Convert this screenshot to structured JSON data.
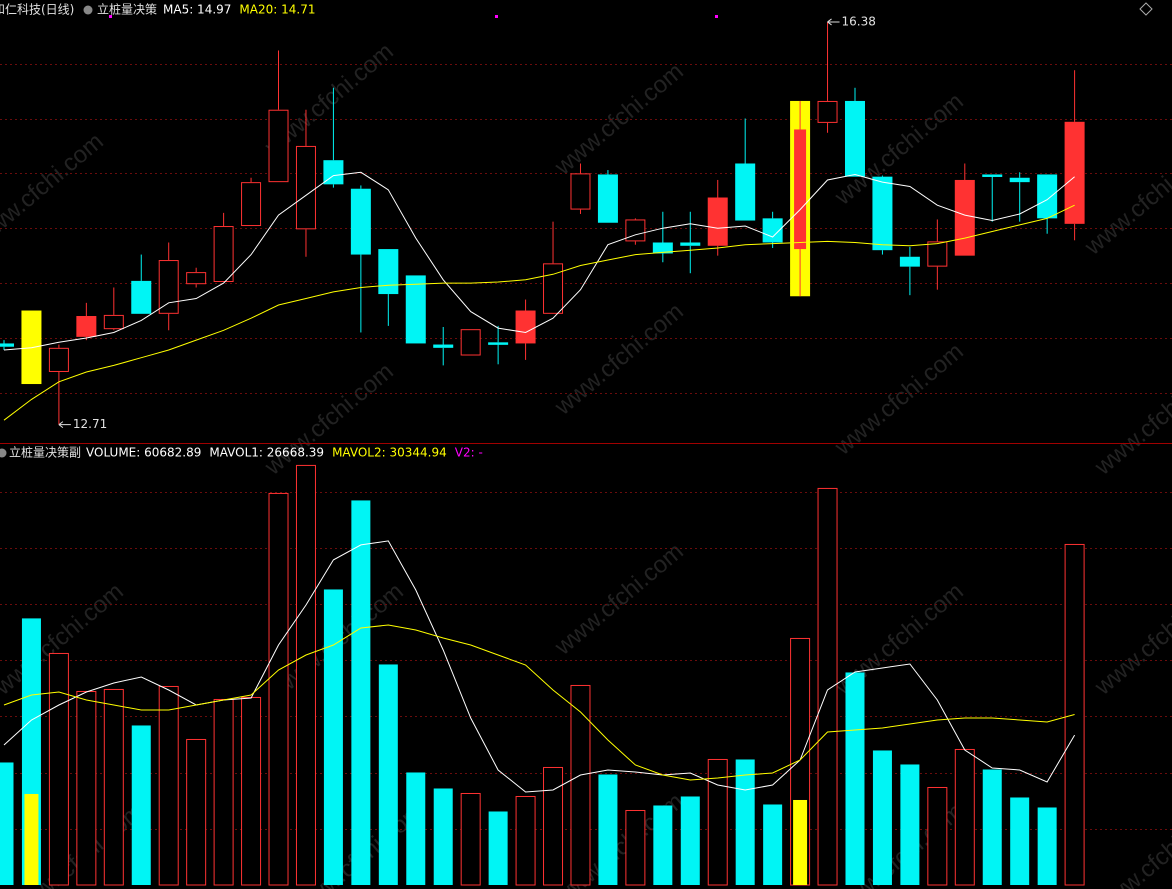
{
  "header": {
    "title": "和仁科技(日线)",
    "indicator": "立桩量决策"
  },
  "watermark": "www.cfchi.com",
  "chart_data": [
    {
      "type": "candlestick",
      "ylim": [
        12.57,
        16.58
      ],
      "yticks": [
        13,
        13.5,
        14,
        14.5,
        15,
        15.5,
        16
      ],
      "grid": true,
      "tick_labels": false,
      "up_color": "#ff3232",
      "down_color": "#00f5f5",
      "candles": [
        {
          "open": 13.45,
          "high": 13.48,
          "low": 13.39,
          "close": 13.42
        },
        {
          "open": 13.75,
          "high": 13.75,
          "low": 13.08,
          "close": 13.08,
          "color": "#ffff00"
        },
        {
          "open": 13.19,
          "high": 13.44,
          "low": 12.71,
          "close": 13.41
        },
        {
          "open": 13.51,
          "high": 13.82,
          "low": 13.48,
          "close": 13.7,
          "hollow": false
        },
        {
          "open": 13.58,
          "high": 13.96,
          "low": 13.57,
          "close": 13.71
        },
        {
          "open": 14.02,
          "high": 14.26,
          "low": 13.72,
          "close": 13.72
        },
        {
          "open": 13.72,
          "high": 14.37,
          "low": 13.57,
          "close": 14.21
        },
        {
          "open": 13.99,
          "high": 14.14,
          "low": 13.96,
          "close": 14.1
        },
        {
          "open": 14.01,
          "high": 14.64,
          "low": 14.01,
          "close": 14.52
        },
        {
          "open": 14.52,
          "high": 14.96,
          "low": 14.52,
          "close": 14.92
        },
        {
          "open": 14.92,
          "high": 16.12,
          "low": 14.92,
          "close": 15.58
        },
        {
          "open": 14.49,
          "high": 15.58,
          "low": 14.24,
          "close": 15.25
        },
        {
          "open": 15.12,
          "high": 15.78,
          "low": 14.87,
          "close": 14.9
        },
        {
          "open": 14.86,
          "high": 14.89,
          "low": 13.55,
          "close": 14.26
        },
        {
          "open": 14.31,
          "high": 14.31,
          "low": 13.61,
          "close": 13.9
        },
        {
          "open": 14.07,
          "high": 14.07,
          "low": 13.45,
          "close": 13.45
        },
        {
          "open": 13.44,
          "high": 13.6,
          "low": 13.25,
          "close": 13.41
        },
        {
          "open": 13.34,
          "high": 13.58,
          "low": 13.34,
          "close": 13.58
        },
        {
          "open": 13.46,
          "high": 13.61,
          "low": 13.26,
          "close": 13.45
        },
        {
          "open": 13.45,
          "high": 13.85,
          "low": 13.3,
          "close": 13.75,
          "hollow": false
        },
        {
          "open": 13.72,
          "high": 14.56,
          "low": 13.72,
          "close": 14.18
        },
        {
          "open": 14.67,
          "high": 15.09,
          "low": 14.63,
          "close": 15.0
        },
        {
          "open": 14.99,
          "high": 15.03,
          "low": 14.55,
          "close": 14.55
        },
        {
          "open": 14.38,
          "high": 14.59,
          "low": 14.35,
          "close": 14.58
        },
        {
          "open": 14.37,
          "high": 14.65,
          "low": 14.19,
          "close": 14.27
        },
        {
          "open": 14.37,
          "high": 14.65,
          "low": 14.09,
          "close": 14.34
        },
        {
          "open": 14.34,
          "high": 14.94,
          "low": 14.25,
          "close": 14.78,
          "hollow": false
        },
        {
          "open": 15.09,
          "high": 15.5,
          "low": 14.57,
          "close": 14.57
        },
        {
          "open": 14.59,
          "high": 14.65,
          "low": 14.32,
          "close": 14.37
        },
        {
          "open": 14.31,
          "high": 15.66,
          "low": 13.88,
          "close": 15.4,
          "hollow": false,
          "highlight": "#ffff00"
        },
        {
          "open": 15.46,
          "high": 16.38,
          "low": 15.37,
          "close": 15.66
        },
        {
          "open": 15.66,
          "high": 15.78,
          "low": 14.97,
          "close": 14.97
        },
        {
          "open": 14.97,
          "high": 14.98,
          "low": 14.26,
          "close": 14.3
        },
        {
          "open": 14.24,
          "high": 14.33,
          "low": 13.89,
          "close": 14.15
        },
        {
          "open": 14.15,
          "high": 14.58,
          "low": 13.94,
          "close": 14.38
        },
        {
          "open": 14.25,
          "high": 15.09,
          "low": 14.25,
          "close": 14.94,
          "hollow": false
        },
        {
          "open": 14.99,
          "high": 14.99,
          "low": 14.56,
          "close": 14.98
        },
        {
          "open": 14.96,
          "high": 15.01,
          "low": 14.56,
          "close": 14.92
        },
        {
          "open": 14.99,
          "high": 14.99,
          "low": 14.45,
          "close": 14.59
        },
        {
          "open": 14.54,
          "high": 15.94,
          "low": 14.39,
          "close": 15.47,
          "hollow": false
        }
      ],
      "series": [
        {
          "name": "MA5: 14.97",
          "color": "#ffffff",
          "values": [
            13.39,
            13.41,
            13.46,
            13.5,
            13.55,
            13.66,
            13.82,
            13.86,
            14.0,
            14.26,
            14.62,
            14.8,
            14.98,
            15.01,
            14.85,
            14.41,
            14.03,
            13.74,
            13.59,
            13.55,
            13.68,
            13.94,
            14.35,
            14.44,
            14.5,
            14.54,
            14.5,
            14.52,
            14.42,
            14.67,
            14.94,
            14.99,
            14.92,
            14.88,
            14.71,
            14.62,
            14.57,
            14.63,
            14.76,
            14.97
          ]
        },
        {
          "name": "MA20: 14.71",
          "color": "#ffff00",
          "values": [
            12.75,
            12.94,
            13.1,
            13.19,
            13.25,
            13.32,
            13.39,
            13.48,
            13.57,
            13.68,
            13.8,
            13.86,
            13.92,
            13.96,
            13.98,
            13.99,
            14.0,
            14.0,
            14.01,
            14.03,
            14.08,
            14.16,
            14.21,
            14.26,
            14.28,
            14.3,
            14.32,
            14.35,
            14.36,
            14.37,
            14.38,
            14.37,
            14.35,
            14.34,
            14.36,
            14.41,
            14.47,
            14.53,
            14.59,
            14.71
          ]
        }
      ],
      "annotations": [
        {
          "label": "16.38",
          "value": 16.38,
          "at": "high"
        },
        {
          "label": "12.71",
          "value": 12.71,
          "at": "low"
        }
      ]
    },
    {
      "type": "volume",
      "title": "立桩量决策副",
      "ylim": [
        0,
        77400
      ],
      "yticks": [
        10000,
        20000,
        30000,
        40000,
        50000,
        60000,
        70000
      ],
      "grid": true,
      "tick_labels": false,
      "bars": {
        "name": "VOLUME: 60682.89",
        "color": "#ffffff",
        "values": [
          21890,
          47526,
          41287,
          34524,
          34880,
          28474,
          35414,
          25982,
          33100,
          33457,
          69760,
          74744,
          52676,
          68515,
          39329,
          20110,
          17262,
          16372,
          13169,
          15838,
          20999,
          35592,
          19754,
          13347,
          14237,
          15838,
          22423,
          22423,
          14415,
          43956,
          70650,
          37905,
          24025,
          21533,
          17440,
          24203,
          20643,
          15660,
          13881,
          60682.89
        ]
      },
      "signal": {
        "color": "#ffff00",
        "values": [
          null,
          16196,
          null,
          null,
          null,
          null,
          null,
          null,
          null,
          null,
          null,
          null,
          null,
          null,
          null,
          null,
          null,
          null,
          null,
          null,
          null,
          null,
          null,
          null,
          null,
          null,
          null,
          null,
          null,
          15127,
          null,
          null,
          null,
          null,
          null,
          null,
          null,
          null,
          null,
          null
        ]
      },
      "series": [
        {
          "name": "MAVOL1: 26668.39",
          "color": "#ffffff",
          "values": [
            24914,
            29363,
            32033,
            34346,
            35948,
            37016,
            34702,
            32033,
            32923,
            33279,
            42710,
            49829,
            57837,
            60506,
            61218,
            52498,
            41821,
            29719,
            20465,
            16550,
            16906,
            19576,
            20465,
            20109,
            19576,
            19932,
            17796,
            16906,
            17796,
            22245,
            34702,
            37905,
            38617,
            39329,
            32923,
            24025,
            20821,
            20465,
            18330,
            26668.39
          ]
        },
        {
          "name": "MAVOL2: 30344.94",
          "color": "#ffff00",
          "values": [
            32033,
            33812,
            34346,
            32923,
            32033,
            31143,
            31143,
            32033,
            32923,
            33812,
            38261,
            40931,
            42710,
            45736,
            46270,
            45380,
            43956,
            42710,
            40931,
            39151,
            34702,
            30787,
            25804,
            21355,
            19576,
            18686,
            19042,
            19576,
            19932,
            22245,
            27228,
            27584,
            27940,
            28652,
            29363,
            29719,
            29719,
            29363,
            29007,
            30344.94
          ]
        }
      ],
      "legend_extra": [
        {
          "text": "V2: -",
          "color": "#ff00ff"
        }
      ]
    }
  ]
}
